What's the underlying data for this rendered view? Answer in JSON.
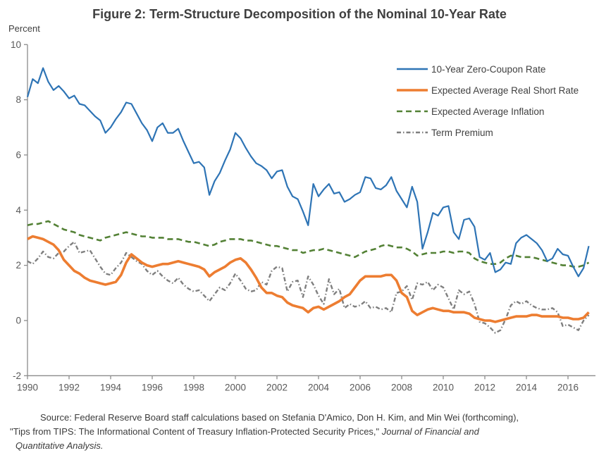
{
  "title": "Figure 2:  Term-Structure Decomposition of the Nominal 10-Year Rate",
  "y_axis_unit_label": "Percent",
  "source_note": {
    "line1": "Source:  Federal Reserve Board staff calculations based on Stefania D'Amico, Don H. Kim, and Min Wei (forthcoming),",
    "line2_plain": "\"Tips from TIPS:  The Informational Content of Treasury Inflation-Protected Security Prices,\" ",
    "line2_italic": "Journal of Financial and",
    "line3_italic": "Quantitative Analysis."
  },
  "chart_data": {
    "type": "line",
    "title": "Figure 2:  Term-Structure Decomposition of the Nominal 10-Year Rate",
    "xlabel": "",
    "ylabel": "Percent",
    "xlim": [
      1990,
      2017.2
    ],
    "ylim": [
      -2,
      10
    ],
    "x_ticks": [
      1990,
      1992,
      1994,
      1996,
      1998,
      2000,
      2002,
      2004,
      2006,
      2008,
      2010,
      2012,
      2014,
      2016
    ],
    "y_ticks": [
      -2,
      0,
      2,
      4,
      6,
      8,
      10
    ],
    "grid": false,
    "legend_position": "top-right-inside",
    "axis_color": "#8c8c8c",
    "tick_label_color": "#595959",
    "x": [
      1990,
      1990.25,
      1990.5,
      1990.75,
      1991,
      1991.25,
      1991.5,
      1991.75,
      1992,
      1992.25,
      1992.5,
      1992.75,
      1993,
      1993.25,
      1993.5,
      1993.75,
      1994,
      1994.25,
      1994.5,
      1994.75,
      1995,
      1995.25,
      1995.5,
      1995.75,
      1996,
      1996.25,
      1996.5,
      1996.75,
      1997,
      1997.25,
      1997.5,
      1997.75,
      1998,
      1998.25,
      1998.5,
      1998.75,
      1999,
      1999.25,
      1999.5,
      1999.75,
      2000,
      2000.25,
      2000.5,
      2000.75,
      2001,
      2001.25,
      2001.5,
      2001.75,
      2002,
      2002.25,
      2002.5,
      2002.75,
      2003,
      2003.25,
      2003.5,
      2003.75,
      2004,
      2004.25,
      2004.5,
      2004.75,
      2005,
      2005.25,
      2005.5,
      2005.75,
      2006,
      2006.25,
      2006.5,
      2006.75,
      2007,
      2007.25,
      2007.5,
      2007.75,
      2008,
      2008.25,
      2008.5,
      2008.75,
      2009,
      2009.25,
      2009.5,
      2009.75,
      2010,
      2010.25,
      2010.5,
      2010.75,
      2011,
      2011.25,
      2011.5,
      2011.75,
      2012,
      2012.25,
      2012.5,
      2012.75,
      2013,
      2013.25,
      2013.5,
      2013.75,
      2014,
      2014.25,
      2014.5,
      2014.75,
      2015,
      2015.25,
      2015.5,
      2015.75,
      2016,
      2016.25,
      2016.5,
      2016.75,
      2017
    ],
    "series": [
      {
        "name": "10-Year Zero-Coupon Rate",
        "color": "#2e74b5",
        "style": "solid",
        "width": 2.2,
        "values": [
          8.1,
          8.75,
          8.6,
          9.15,
          8.65,
          8.35,
          8.5,
          8.3,
          8.05,
          8.15,
          7.85,
          7.8,
          7.6,
          7.4,
          7.25,
          6.8,
          7.0,
          7.3,
          7.55,
          7.9,
          7.85,
          7.5,
          7.15,
          6.9,
          6.5,
          7.0,
          7.15,
          6.8,
          6.8,
          6.95,
          6.5,
          6.1,
          5.7,
          5.75,
          5.55,
          4.55,
          5.05,
          5.35,
          5.8,
          6.2,
          6.8,
          6.6,
          6.25,
          5.95,
          5.7,
          5.6,
          5.45,
          5.15,
          5.4,
          5.45,
          4.85,
          4.5,
          4.4,
          3.95,
          3.45,
          4.95,
          4.5,
          4.75,
          4.95,
          4.6,
          4.65,
          4.3,
          4.4,
          4.55,
          4.65,
          5.2,
          5.15,
          4.8,
          4.75,
          4.9,
          5.2,
          4.7,
          4.4,
          4.1,
          4.85,
          4.3,
          2.6,
          3.2,
          3.9,
          3.8,
          4.1,
          4.15,
          3.2,
          2.95,
          3.65,
          3.7,
          3.4,
          2.3,
          2.2,
          2.45,
          1.75,
          1.85,
          2.1,
          2.05,
          2.8,
          3.0,
          3.1,
          2.95,
          2.8,
          2.55,
          2.15,
          2.25,
          2.6,
          2.4,
          2.35,
          1.95,
          1.6,
          1.9,
          2.7
        ]
      },
      {
        "name": "Expected Average Real Short Rate",
        "color": "#ed7d31",
        "style": "solid",
        "width": 3.6,
        "values": [
          2.95,
          3.05,
          3.0,
          2.95,
          2.85,
          2.75,
          2.55,
          2.2,
          2.0,
          1.8,
          1.7,
          1.55,
          1.45,
          1.4,
          1.35,
          1.3,
          1.35,
          1.4,
          1.65,
          2.1,
          2.4,
          2.25,
          2.1,
          2.0,
          1.95,
          2.0,
          2.05,
          2.05,
          2.1,
          2.15,
          2.1,
          2.05,
          2.0,
          1.95,
          1.85,
          1.6,
          1.75,
          1.85,
          1.95,
          2.1,
          2.2,
          2.25,
          2.1,
          1.85,
          1.55,
          1.2,
          1.0,
          1.0,
          0.9,
          0.85,
          0.65,
          0.55,
          0.5,
          0.45,
          0.3,
          0.45,
          0.5,
          0.4,
          0.5,
          0.6,
          0.7,
          0.85,
          0.95,
          1.2,
          1.45,
          1.6,
          1.6,
          1.6,
          1.6,
          1.65,
          1.65,
          1.45,
          1.0,
          0.85,
          0.35,
          0.2,
          0.3,
          0.4,
          0.45,
          0.4,
          0.35,
          0.35,
          0.3,
          0.3,
          0.3,
          0.25,
          0.1,
          0.05,
          0.0,
          0.0,
          -0.05,
          0.0,
          0.05,
          0.1,
          0.15,
          0.15,
          0.15,
          0.2,
          0.2,
          0.15,
          0.15,
          0.15,
          0.15,
          0.1,
          0.1,
          0.05,
          0.05,
          0.1,
          0.3
        ]
      },
      {
        "name": "Expected Average Inflation",
        "color": "#538135",
        "style": "dashed-long",
        "width": 2.6,
        "values": [
          3.45,
          3.5,
          3.5,
          3.55,
          3.6,
          3.5,
          3.4,
          3.3,
          3.25,
          3.2,
          3.1,
          3.05,
          3.0,
          2.95,
          2.9,
          3.0,
          3.05,
          3.1,
          3.15,
          3.2,
          3.15,
          3.1,
          3.05,
          3.05,
          3.0,
          3.0,
          3.0,
          2.95,
          2.95,
          2.95,
          2.9,
          2.85,
          2.85,
          2.8,
          2.75,
          2.7,
          2.75,
          2.85,
          2.9,
          2.95,
          2.95,
          2.95,
          2.9,
          2.9,
          2.85,
          2.8,
          2.75,
          2.7,
          2.7,
          2.65,
          2.6,
          2.55,
          2.55,
          2.45,
          2.5,
          2.55,
          2.55,
          2.6,
          2.55,
          2.5,
          2.45,
          2.4,
          2.35,
          2.3,
          2.4,
          2.5,
          2.55,
          2.6,
          2.7,
          2.75,
          2.7,
          2.65,
          2.65,
          2.6,
          2.5,
          2.35,
          2.4,
          2.45,
          2.45,
          2.45,
          2.5,
          2.5,
          2.45,
          2.5,
          2.5,
          2.45,
          2.25,
          2.15,
          2.1,
          2.05,
          2.05,
          2.1,
          2.25,
          2.35,
          2.35,
          2.3,
          2.3,
          2.3,
          2.25,
          2.2,
          2.15,
          2.1,
          2.05,
          2.0,
          2.0,
          1.95,
          1.95,
          2.0,
          2.1
        ]
      },
      {
        "name": "Term Premium",
        "color": "#7f7f7f",
        "style": "dashed-short",
        "width": 2.4,
        "values": [
          2.15,
          2.05,
          2.25,
          2.5,
          2.3,
          2.25,
          2.45,
          2.5,
          2.7,
          2.85,
          2.45,
          2.5,
          2.55,
          2.25,
          1.95,
          1.7,
          1.65,
          1.9,
          2.1,
          2.45,
          2.3,
          2.15,
          2.05,
          1.8,
          1.65,
          1.8,
          1.6,
          1.45,
          1.35,
          1.55,
          1.3,
          1.15,
          1.05,
          1.1,
          0.9,
          0.7,
          0.95,
          1.2,
          1.1,
          1.35,
          1.7,
          1.45,
          1.15,
          1.05,
          1.1,
          1.4,
          1.3,
          1.8,
          1.95,
          1.9,
          1.05,
          1.4,
          1.45,
          0.85,
          1.6,
          1.3,
          0.9,
          0.6,
          1.5,
          0.95,
          1.15,
          0.45,
          0.6,
          0.5,
          0.55,
          0.7,
          0.45,
          0.5,
          0.4,
          0.45,
          0.3,
          1.0,
          1.05,
          1.25,
          0.75,
          1.35,
          1.3,
          1.4,
          1.1,
          1.3,
          1.2,
          0.8,
          0.4,
          1.1,
          0.95,
          1.05,
          0.6,
          -0.05,
          -0.1,
          -0.25,
          -0.45,
          -0.35,
          0.05,
          0.55,
          0.7,
          0.6,
          0.7,
          0.55,
          0.45,
          0.4,
          0.4,
          0.45,
          0.3,
          -0.2,
          -0.15,
          -0.25,
          -0.35,
          0.0,
          0.2
        ]
      }
    ]
  }
}
